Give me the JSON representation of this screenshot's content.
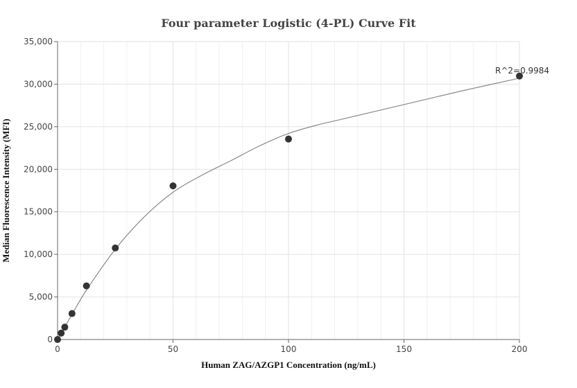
{
  "chart_data": {
    "type": "scatter",
    "title": "Four parameter Logistic (4-PL) Curve Fit",
    "xlabel": "Human  ZAG/AZGP1 Concentration (ng/mL)",
    "ylabel": "Median Fluorescence Intensity (MFI)",
    "xlim": [
      0,
      200
    ],
    "ylim": [
      0,
      35000
    ],
    "xticks": [
      0,
      50,
      100,
      150,
      200
    ],
    "yticks": [
      0,
      5000,
      10000,
      15000,
      20000,
      25000,
      30000,
      35000
    ],
    "xtick_labels": [
      "0",
      "50",
      "100",
      "150",
      "200"
    ],
    "ytick_labels": [
      "0",
      "5,000",
      "10,000",
      "15,000",
      "20,000",
      "25,000",
      "30,000",
      "35,000"
    ],
    "grid": true,
    "points": {
      "x": [
        0,
        1.5625,
        3.125,
        6.25,
        12.5,
        25,
        50,
        100,
        200
      ],
      "y": [
        0,
        750,
        1450,
        3050,
        6300,
        10750,
        18050,
        23550,
        30950
      ]
    },
    "fit_curve": [
      [
        0,
        0
      ],
      [
        1.5625,
        700
      ],
      [
        3.125,
        1450
      ],
      [
        6.25,
        2950
      ],
      [
        12.5,
        5800
      ],
      [
        25,
        10600
      ],
      [
        37.5,
        14400
      ],
      [
        50,
        17300
      ],
      [
        62.5,
        19300
      ],
      [
        75,
        21000
      ],
      [
        87.5,
        22750
      ],
      [
        100,
        24200
      ],
      [
        112.5,
        25200
      ],
      [
        125,
        26000
      ],
      [
        150,
        27600
      ],
      [
        175,
        29200
      ],
      [
        200,
        30700
      ]
    ],
    "annotation": "R^2=0.9984",
    "colors": {
      "point": "#333333",
      "curve": "#888888",
      "grid": "#e2e2e2",
      "axis": "#666666"
    }
  }
}
